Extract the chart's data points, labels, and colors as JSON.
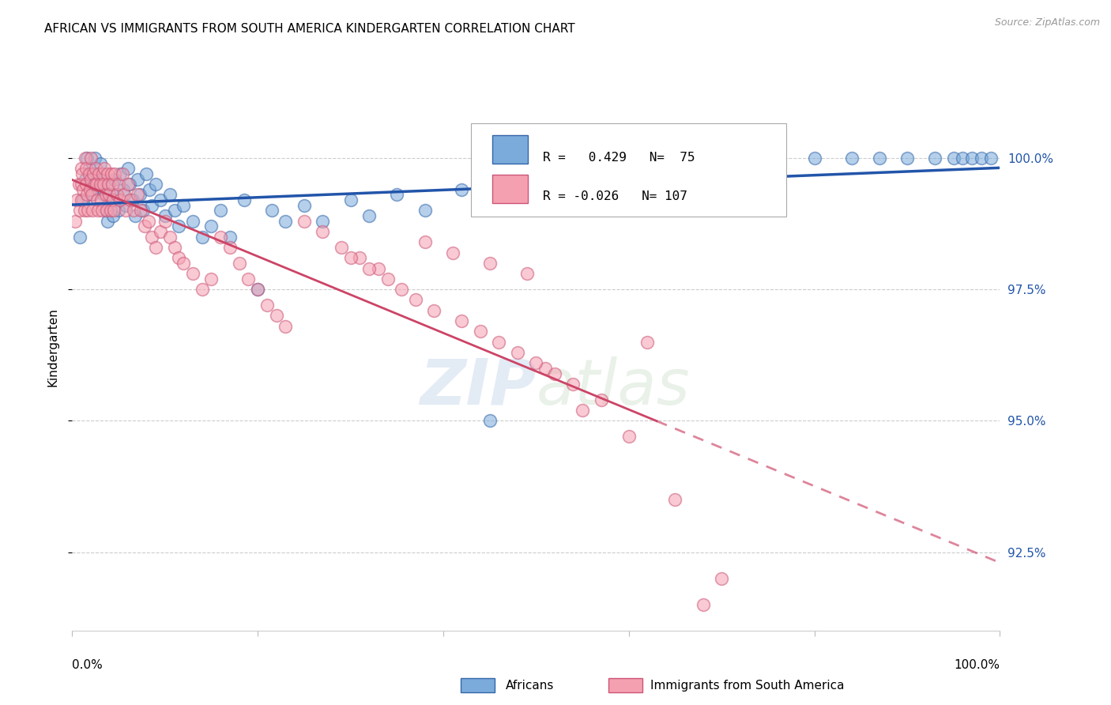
{
  "title": "AFRICAN VS IMMIGRANTS FROM SOUTH AMERICA KINDERGARTEN CORRELATION CHART",
  "source": "Source: ZipAtlas.com",
  "ylabel": "Kindergarten",
  "xlim": [
    0,
    1.0
  ],
  "ylim": [
    91.0,
    101.8
  ],
  "yticks": [
    92.5,
    95.0,
    97.5,
    100.0
  ],
  "ytick_labels": [
    "92.5%",
    "95.0%",
    "97.5%",
    "100.0%"
  ],
  "blue_R": 0.429,
  "blue_N": 75,
  "pink_R": -0.026,
  "pink_N": 107,
  "blue_color": "#7aabdb",
  "blue_edge": "#3366aa",
  "pink_color": "#f5a0b0",
  "pink_edge": "#cc5577",
  "trendline_blue": "#2255aa",
  "trendline_pink": "#cc4466",
  "legend_label_blue": "Africans",
  "legend_label_pink": "Immigrants from South America",
  "watermark_zip": "ZIP",
  "watermark_atlas": "atlas",
  "blue_x": [
    0.008,
    0.012,
    0.014,
    0.016,
    0.018,
    0.02,
    0.022,
    0.024,
    0.026,
    0.028,
    0.03,
    0.032,
    0.034,
    0.036,
    0.038,
    0.04,
    0.042,
    0.044,
    0.046,
    0.048,
    0.05,
    0.052,
    0.055,
    0.058,
    0.06,
    0.062,
    0.065,
    0.068,
    0.07,
    0.073,
    0.076,
    0.08,
    0.083,
    0.086,
    0.09,
    0.095,
    0.1,
    0.105,
    0.11,
    0.115,
    0.12,
    0.13,
    0.14,
    0.15,
    0.16,
    0.17,
    0.185,
    0.2,
    0.215,
    0.23,
    0.25,
    0.27,
    0.3,
    0.32,
    0.35,
    0.38,
    0.42,
    0.45,
    0.48,
    0.52,
    0.56,
    0.6,
    0.65,
    0.7,
    0.75,
    0.8,
    0.84,
    0.87,
    0.9,
    0.93,
    0.95,
    0.96,
    0.97,
    0.98,
    0.99
  ],
  "blue_y": [
    98.5,
    99.2,
    99.6,
    100.0,
    99.8,
    99.5,
    99.3,
    100.0,
    99.7,
    99.4,
    99.9,
    99.6,
    99.3,
    99.0,
    98.8,
    99.5,
    99.2,
    98.9,
    99.6,
    99.3,
    99.0,
    99.7,
    99.4,
    99.1,
    99.8,
    99.5,
    99.2,
    98.9,
    99.6,
    99.3,
    99.0,
    99.7,
    99.4,
    99.1,
    99.5,
    99.2,
    98.9,
    99.3,
    99.0,
    98.7,
    99.1,
    98.8,
    98.5,
    98.7,
    99.0,
    98.5,
    99.2,
    97.5,
    99.0,
    98.8,
    99.1,
    98.8,
    99.2,
    98.9,
    99.3,
    99.0,
    99.4,
    95.0,
    99.2,
    99.5,
    99.7,
    99.8,
    100.0,
    100.0,
    100.0,
    100.0,
    100.0,
    100.0,
    100.0,
    100.0,
    100.0,
    100.0,
    100.0,
    100.0,
    100.0
  ],
  "pink_x": [
    0.003,
    0.005,
    0.007,
    0.008,
    0.01,
    0.01,
    0.01,
    0.011,
    0.012,
    0.013,
    0.014,
    0.015,
    0.015,
    0.016,
    0.017,
    0.018,
    0.019,
    0.02,
    0.02,
    0.021,
    0.022,
    0.023,
    0.024,
    0.025,
    0.026,
    0.027,
    0.028,
    0.029,
    0.03,
    0.031,
    0.032,
    0.033,
    0.034,
    0.035,
    0.036,
    0.037,
    0.038,
    0.039,
    0.04,
    0.041,
    0.042,
    0.043,
    0.044,
    0.045,
    0.046,
    0.048,
    0.05,
    0.052,
    0.054,
    0.056,
    0.058,
    0.06,
    0.063,
    0.066,
    0.07,
    0.074,
    0.078,
    0.082,
    0.086,
    0.09,
    0.095,
    0.1,
    0.105,
    0.11,
    0.115,
    0.12,
    0.13,
    0.14,
    0.15,
    0.16,
    0.17,
    0.18,
    0.19,
    0.2,
    0.21,
    0.22,
    0.23,
    0.25,
    0.27,
    0.29,
    0.31,
    0.33,
    0.38,
    0.41,
    0.45,
    0.49,
    0.51,
    0.55,
    0.57,
    0.6,
    0.62,
    0.65,
    0.68,
    0.7,
    0.3,
    0.32,
    0.34,
    0.355,
    0.37,
    0.39,
    0.42,
    0.44,
    0.46,
    0.48,
    0.5,
    0.52,
    0.54
  ],
  "pink_y": [
    98.8,
    99.2,
    99.5,
    99.0,
    99.8,
    99.5,
    99.2,
    99.7,
    99.4,
    99.0,
    100.0,
    99.8,
    99.5,
    99.3,
    99.0,
    99.7,
    99.4,
    100.0,
    99.6,
    99.3,
    99.0,
    99.7,
    99.5,
    99.8,
    99.5,
    99.2,
    99.0,
    99.7,
    99.5,
    99.2,
    99.0,
    99.7,
    99.5,
    99.8,
    99.3,
    99.0,
    99.7,
    99.5,
    99.3,
    99.0,
    99.7,
    99.5,
    99.2,
    99.0,
    99.7,
    99.3,
    99.5,
    99.2,
    99.7,
    99.3,
    99.0,
    99.5,
    99.2,
    99.0,
    99.3,
    99.0,
    98.7,
    98.8,
    98.5,
    98.3,
    98.6,
    98.8,
    98.5,
    98.3,
    98.1,
    98.0,
    97.8,
    97.5,
    97.7,
    98.5,
    98.3,
    98.0,
    97.7,
    97.5,
    97.2,
    97.0,
    96.8,
    98.8,
    98.6,
    98.3,
    98.1,
    97.9,
    98.4,
    98.2,
    98.0,
    97.8,
    96.0,
    95.2,
    95.4,
    94.7,
    96.5,
    93.5,
    91.5,
    92.0,
    98.1,
    97.9,
    97.7,
    97.5,
    97.3,
    97.1,
    96.9,
    96.7,
    96.5,
    96.3,
    96.1,
    95.9,
    95.7
  ]
}
